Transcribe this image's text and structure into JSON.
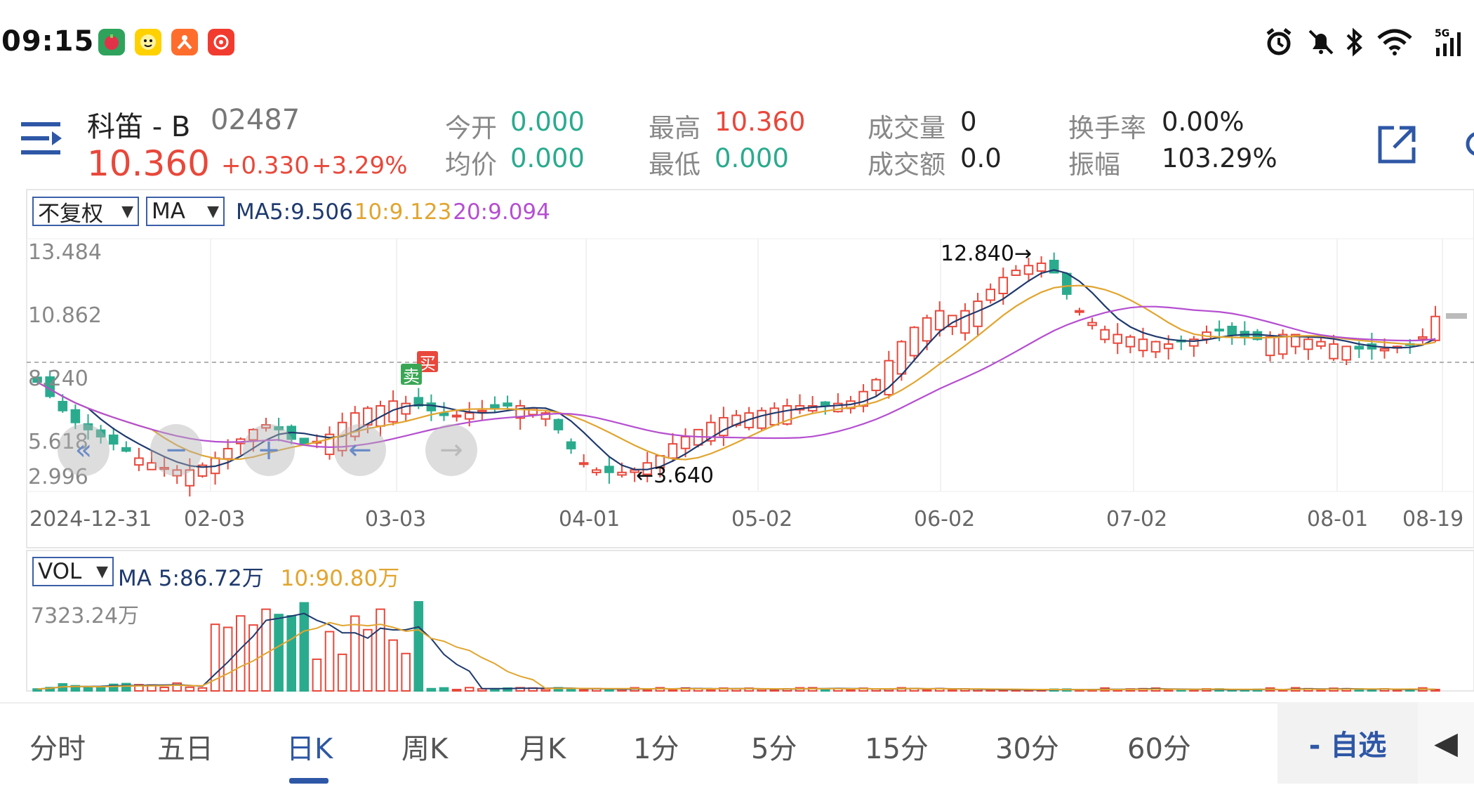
{
  "status_bar": {
    "time": "09:15",
    "apps": [
      "pomegranate-app-icon",
      "meituan-app-icon",
      "app-icon-orange",
      "app-icon-red"
    ],
    "network": "5G"
  },
  "header": {
    "name": "科笛 - B",
    "code": "02487",
    "price": "10.360",
    "change": "+0.330",
    "change_pct": "+3.29%",
    "quote": [
      {
        "label": "今开",
        "value": "0.000",
        "color": "green"
      },
      {
        "label": "均价",
        "value": "0.000",
        "color": "green"
      },
      {
        "label": "最高",
        "value": "10.360",
        "color": "red"
      },
      {
        "label": "最低",
        "value": "0.000",
        "color": "green"
      },
      {
        "label": "成交量",
        "value": "0",
        "color": "dark"
      },
      {
        "label": "成交额",
        "value": "0.0",
        "color": "dark"
      },
      {
        "label": "换手率",
        "value": "0.00%",
        "color": "dark"
      },
      {
        "label": "振幅",
        "value": "103.29%",
        "color": "dark"
      }
    ]
  },
  "chart": {
    "adjust_selector": "不复权",
    "indicator_selector": "MA",
    "ma5": "MA5:9.506",
    "ma10": "10:9.123",
    "ma20": "20:9.094",
    "y_labels": [
      "13.484",
      "10.862",
      "8.240",
      "5.618",
      "2.996"
    ],
    "x_labels": [
      "2024-12-31",
      "02-03",
      "03-03",
      "04-01",
      "05-02",
      "06-02",
      "07-02",
      "08-01",
      "08-19"
    ],
    "high_mark": "12.840→",
    "low_mark": "←3.640",
    "sell_tag": "卖",
    "buy_tag": "买",
    "colors": {
      "up": "#e8483b",
      "down": "#2aab8e",
      "ma5": "#1f3a6e",
      "ma10": "#e1a530",
      "ma20": "#b54fd0"
    }
  },
  "volume": {
    "selector": "VOL",
    "ma5": "MA 5:86.72万",
    "ma10": "10:90.80万",
    "max_label": "7323.24万"
  },
  "tabs": [
    "分时",
    "五日",
    "日K",
    "周K",
    "月K",
    "1分",
    "5分",
    "15分",
    "30分",
    "60分"
  ],
  "active_tab": "日K",
  "watchlist_button": "- 自选",
  "chart_data": {
    "type": "candlestick",
    "title": "",
    "x_ticks": [
      "2024-12-31",
      "02-03",
      "03-03",
      "04-01",
      "05-02",
      "06-02",
      "07-02",
      "08-01",
      "08-19"
    ],
    "y_range": [
      2.996,
      13.484
    ],
    "close_series_approx": [
      7.6,
      7.0,
      6.4,
      5.9,
      5.6,
      5.3,
      5.0,
      4.7,
      4.4,
      4.2,
      4.0,
      3.9,
      3.9,
      4.1,
      4.4,
      4.8,
      5.2,
      5.6,
      5.8,
      5.6,
      5.2,
      5.0,
      5.1,
      5.4,
      5.9,
      6.3,
      6.5,
      6.6,
      6.8,
      6.7,
      6.6,
      6.4,
      6.2,
      6.2,
      6.3,
      6.4,
      6.5,
      6.6,
      6.6,
      6.5,
      6.3,
      5.6,
      4.8,
      4.2,
      3.9,
      3.8,
      3.8,
      3.9,
      4.2,
      4.5,
      5.0,
      5.3,
      5.6,
      5.9,
      6.1,
      6.2,
      6.3,
      6.4,
      6.5,
      6.6,
      6.6,
      6.6,
      6.6,
      6.7,
      6.8,
      7.2,
      7.7,
      8.5,
      9.3,
      9.9,
      10.3,
      10.6,
      10.4,
      10.6,
      11.0,
      11.5,
      12.0,
      12.3,
      12.5,
      12.6,
      12.2,
      11.3,
      10.6,
      10.1,
      9.8,
      9.6,
      9.5,
      9.4,
      9.3,
      9.2,
      9.3,
      9.4,
      9.7,
      9.8,
      9.6,
      9.5,
      9.4,
      9.5,
      9.6,
      9.6,
      9.4,
      9.3,
      9.2,
      9.1,
      9.0,
      9.0,
      9.0,
      9.1,
      9.2,
      9.5,
      10.36
    ],
    "ma5": "9.506",
    "ma10": "9.123",
    "ma20": "9.094",
    "period_high": 12.84,
    "period_low": 3.64,
    "volume_max": "7323.24万",
    "volume_ma5": "86.72万",
    "volume_ma10": "90.80万"
  }
}
